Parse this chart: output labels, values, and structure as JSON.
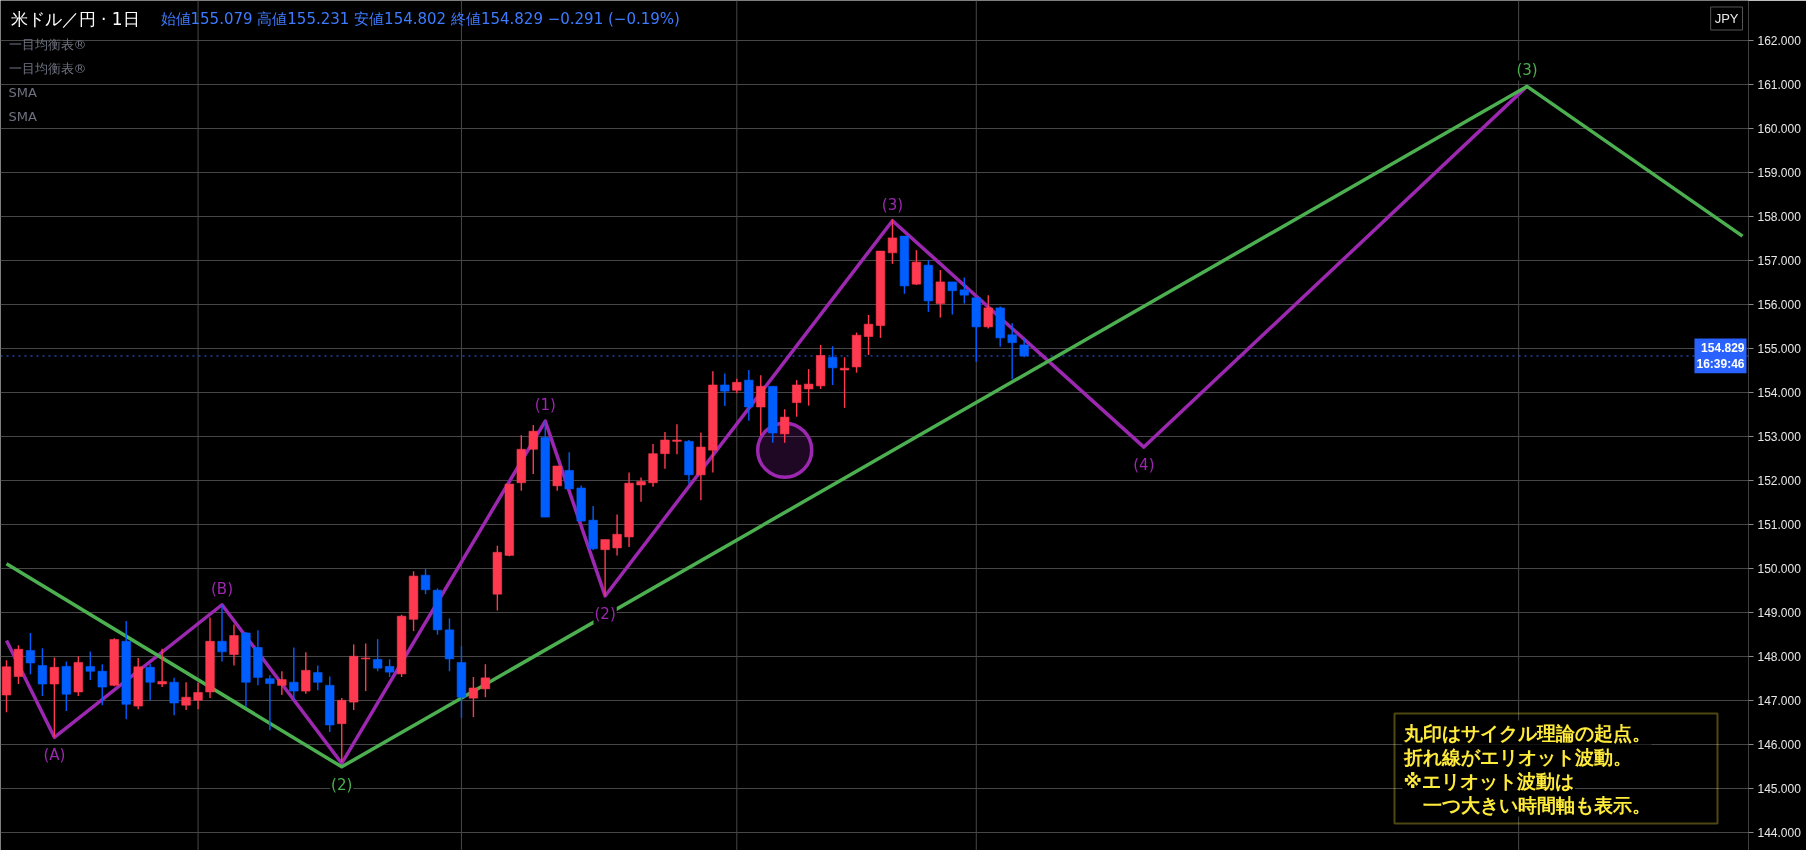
{
  "chart_data": {
    "type": "candlestick",
    "title": "米ドル／円 · 1日",
    "subtitle": "始値155.079 高値155.231 安値154.802 終値154.829 −0.291 (−0.19%)",
    "categories": [
      null,
      null,
      null,
      null,
      null,
      null,
      null,
      null,
      null,
      null,
      null,
      null,
      null,
      null,
      null,
      null,
      null,
      null,
      null,
      null,
      null,
      null,
      null,
      null,
      null,
      null,
      null,
      null,
      null,
      null,
      null,
      null,
      null,
      null,
      null,
      null,
      null,
      null,
      null,
      null,
      null,
      null,
      null,
      null,
      null,
      null,
      null,
      null,
      null,
      null,
      null,
      null,
      null,
      null,
      null,
      null,
      null,
      null,
      null,
      null,
      null,
      null,
      null,
      null,
      null,
      null,
      null,
      null,
      null,
      null,
      null,
      null,
      null,
      null,
      null,
      null,
      null,
      null,
      null,
      null,
      null,
      null,
      null,
      null,
      null,
      null,
      null,
      null,
      null,
      null,
      null,
      null,
      null,
      null,
      null,
      null,
      null,
      null,
      null,
      null,
      null,
      null,
      null,
      null,
      null,
      null,
      null,
      null,
      null,
      null,
      null,
      null,
      null,
      null,
      null,
      null,
      null,
      null,
      null,
      null,
      null,
      null,
      null,
      null,
      null,
      null,
      null,
      null,
      null,
      null,
      null,
      null,
      null,
      null,
      null,
      null,
      null,
      null,
      null,
      null,
      null,
      null,
      null,
      null,
      null,
      null
    ],
    "ohlc": [
      [
        147.13,
        147.92,
        146.74,
        147.77
      ],
      [
        147.55,
        148.26,
        147.38,
        148.17
      ],
      [
        148.14,
        148.54,
        147.6,
        147.86
      ],
      [
        147.8,
        148.19,
        147.11,
        147.38
      ],
      [
        147.38,
        147.98,
        146.17,
        147.76
      ],
      [
        147.78,
        147.89,
        146.77,
        147.15
      ],
      [
        147.2,
        148.01,
        147.11,
        147.87
      ],
      [
        147.78,
        148.12,
        147.47,
        147.67
      ],
      [
        147.67,
        147.83,
        146.9,
        147.31
      ],
      [
        147.35,
        148.42,
        147.33,
        148.39
      ],
      [
        148.35,
        148.81,
        146.58,
        146.92
      ],
      [
        146.88,
        147.97,
        146.81,
        147.77
      ],
      [
        147.76,
        147.84,
        147.01,
        147.42
      ],
      [
        147.38,
        148.18,
        147.31,
        147.44
      ],
      [
        147.42,
        147.52,
        146.67,
        146.95
      ],
      [
        146.9,
        147.42,
        146.79,
        147.08
      ],
      [
        147.01,
        147.41,
        146.81,
        147.19
      ],
      [
        147.2,
        148.89,
        147.06,
        148.35
      ],
      [
        148.35,
        149.18,
        147.89,
        148.11
      ],
      [
        148.05,
        148.73,
        147.8,
        148.48
      ],
      [
        148.54,
        148.56,
        146.86,
        147.42
      ],
      [
        148.21,
        148.6,
        147.35,
        147.53
      ],
      [
        147.5,
        147.58,
        146.33,
        147.39
      ],
      [
        147.35,
        147.67,
        147.13,
        147.48
      ],
      [
        147.42,
        148.21,
        147.02,
        147.22
      ],
      [
        147.22,
        148.1,
        147.16,
        147.69
      ],
      [
        147.64,
        147.8,
        147.24,
        147.42
      ],
      [
        147.35,
        147.55,
        146.29,
        146.45
      ],
      [
        146.48,
        147.06,
        145.61,
        147.01
      ],
      [
        146.97,
        148.28,
        146.79,
        148.01
      ],
      [
        147.95,
        148.3,
        147.22,
        147.97
      ],
      [
        147.94,
        148.4,
        147.67,
        147.74
      ],
      [
        147.78,
        147.94,
        147.54,
        147.65
      ],
      [
        147.61,
        148.95,
        147.54,
        148.92
      ],
      [
        148.85,
        149.94,
        148.58,
        149.83
      ],
      [
        149.85,
        149.99,
        149.42,
        149.52
      ],
      [
        149.51,
        149.55,
        148.5,
        148.61
      ],
      [
        148.61,
        148.87,
        147.67,
        147.95
      ],
      [
        147.87,
        148.24,
        146.61,
        147.08
      ],
      [
        147.06,
        147.54,
        146.63,
        147.29
      ],
      [
        147.27,
        147.83,
        147.08,
        147.52
      ],
      [
        149.42,
        150.52,
        149.05,
        150.37
      ],
      [
        150.3,
        151.92,
        150.28,
        151.92
      ],
      [
        151.95,
        153.03,
        151.77,
        152.71
      ],
      [
        152.71,
        153.26,
        152.15,
        153.12
      ],
      [
        152.98,
        153.35,
        151.17,
        151.17
      ],
      [
        151.88,
        152.33,
        151.77,
        152.33
      ],
      [
        152.23,
        152.64,
        151.81,
        151.81
      ],
      [
        151.83,
        151.89,
        151.08,
        151.08
      ],
      [
        151.1,
        151.42,
        150.42,
        150.45
      ],
      [
        150.43,
        150.66,
        149.38,
        150.66
      ],
      [
        150.47,
        151.23,
        150.3,
        150.78
      ],
      [
        150.72,
        152.18,
        150.49,
        151.94
      ],
      [
        151.9,
        152.07,
        151.52,
        151.98
      ],
      [
        151.95,
        152.83,
        151.86,
        152.61
      ],
      [
        152.61,
        153.1,
        152.27,
        152.92
      ],
      [
        152.89,
        153.28,
        152.6,
        152.92
      ],
      [
        152.89,
        152.92,
        151.93,
        152.13
      ],
      [
        152.13,
        153.09,
        151.55,
        152.76
      ],
      [
        152.69,
        154.48,
        152.18,
        154.17
      ],
      [
        154.17,
        154.43,
        153.69,
        154.03
      ],
      [
        154.05,
        154.31,
        153.98,
        154.23
      ],
      [
        154.28,
        154.51,
        153.36,
        153.67
      ],
      [
        153.67,
        154.39,
        153.03,
        154.14
      ],
      [
        154.14,
        154.14,
        152.86,
        153.08
      ],
      [
        153.06,
        153.62,
        152.86,
        153.44
      ],
      [
        153.77,
        154.28,
        153.45,
        154.17
      ],
      [
        154.08,
        154.53,
        153.7,
        154.19
      ],
      [
        154.15,
        155.08,
        154.08,
        154.84
      ],
      [
        154.8,
        155.05,
        154.17,
        154.56
      ],
      [
        154.51,
        154.8,
        153.65,
        154.55
      ],
      [
        154.58,
        155.36,
        154.45,
        155.3
      ],
      [
        155.27,
        155.76,
        154.85,
        155.55
      ],
      [
        155.52,
        157.21,
        155.24,
        157.21
      ],
      [
        157.17,
        157.93,
        156.92,
        157.51
      ],
      [
        157.55,
        157.55,
        156.24,
        156.42
      ],
      [
        156.46,
        157.23,
        156.44,
        156.96
      ],
      [
        156.89,
        157.01,
        155.83,
        156.08
      ],
      [
        156.02,
        156.78,
        155.7,
        156.51
      ],
      [
        156.51,
        156.51,
        155.77,
        156.31
      ],
      [
        156.33,
        156.61,
        156.02,
        156.21
      ],
      [
        156.15,
        156.15,
        154.7,
        155.49
      ],
      [
        155.49,
        156.21,
        155.45,
        155.92
      ],
      [
        155.92,
        155.95,
        155.04,
        155.24
      ],
      [
        155.31,
        155.57,
        154.3,
        155.13
      ],
      [
        155.079,
        155.231,
        154.802,
        154.829
      ],
      null,
      null,
      null,
      null,
      null,
      null,
      null,
      null,
      null,
      null,
      null,
      null,
      null,
      null,
      null,
      null,
      null,
      null,
      null,
      null,
      null,
      null,
      null,
      null,
      null,
      null,
      null,
      null,
      null,
      null,
      null,
      null,
      null,
      null,
      null,
      null,
      null,
      null,
      null,
      null,
      null,
      null,
      null,
      null,
      null,
      null,
      null,
      null,
      null,
      null,
      null,
      null,
      null,
      null,
      null,
      null,
      null,
      null,
      null,
      null
    ],
    "colors": [
      "#ff3a50",
      "#ff3a50",
      "#005eff",
      "#005eff",
      "#ff3a50",
      "#005eff",
      "#ff3a50",
      "#005eff",
      "#005eff",
      "#ff3a50",
      "#005eff",
      "#ff3a50",
      "#005eff",
      "#ff3a50",
      "#005eff",
      "#ff3a50",
      "#ff3a50",
      "#ff3a50",
      "#005eff",
      "#ff3a50",
      "#005eff",
      "#005eff",
      "#005eff",
      "#ff3a50",
      "#005eff",
      "#ff3a50",
      "#005eff",
      "#005eff",
      "#ff3a50",
      "#ff3a50",
      "#ff3a50",
      "#005eff",
      "#005eff",
      "#ff3a50",
      "#ff3a50",
      "#005eff",
      "#005eff",
      "#005eff",
      "#005eff",
      "#ff3a50",
      "#ff3a50",
      "#ff3a50",
      "#ff3a50",
      "#ff3a50",
      "#ff3a50",
      "#005eff",
      "#ff3a50",
      "#005eff",
      "#005eff",
      "#005eff",
      "#ff3a50",
      "#ff3a50",
      "#ff3a50",
      "#ff3a50",
      "#ff3a50",
      "#ff3a50",
      "#ff3a50",
      "#005eff",
      "#ff3a50",
      "#ff3a50",
      "#005eff",
      "#ff3a50",
      "#005eff",
      "#ff3a50",
      "#005eff",
      "#ff3a50",
      "#ff3a50",
      "#ff3a50",
      "#ff3a50",
      "#005eff",
      "#ff3a50",
      "#ff3a50",
      "#ff3a50",
      "#ff3a50",
      "#ff3a50",
      "#005eff",
      "#ff3a50",
      "#005eff",
      "#ff3a50",
      "#005eff",
      "#005eff",
      "#005eff",
      "#ff3a50",
      "#005eff",
      "#005eff",
      "#005eff",
      null,
      null,
      null,
      null,
      null,
      null,
      null,
      null,
      null,
      null,
      null,
      null,
      null,
      null,
      null,
      null,
      null,
      null,
      null,
      null,
      null,
      null,
      null,
      null,
      null,
      null,
      null,
      null,
      null,
      null,
      null,
      null,
      null,
      null,
      null,
      null,
      null,
      null,
      null,
      null,
      null,
      null,
      null,
      null,
      null,
      null,
      null,
      null,
      null,
      null,
      null,
      null,
      null,
      null,
      null,
      null,
      null,
      null,
      null,
      null
    ],
    "series": [
      {
        "type": "line",
        "color": "#9c27b0",
        "values": [
          148.37,
          null,
          null,
          null,
          146.17,
          null,
          null,
          null,
          null,
          null,
          null,
          null,
          null,
          null,
          null,
          null,
          null,
          null,
          149.18,
          null,
          null,
          null,
          null,
          null,
          null,
          null,
          null,
          null,
          145.58,
          null,
          null,
          null,
          null,
          null,
          null,
          null,
          null,
          null,
          null,
          null,
          null,
          null,
          null,
          null,
          null,
          153.35,
          null,
          null,
          null,
          null,
          149.38,
          null,
          null,
          null,
          null,
          null,
          null,
          null,
          null,
          null,
          null,
          null,
          null,
          null,
          null,
          null,
          null,
          null,
          null,
          null,
          null,
          null,
          null,
          null,
          157.9,
          null,
          null,
          null,
          null,
          null,
          null,
          null,
          null,
          null,
          null,
          null,
          null,
          null,
          null,
          null,
          null,
          null,
          null,
          null,
          null,
          152.76,
          null,
          null,
          null,
          null,
          null,
          null,
          null,
          null,
          null,
          null,
          null,
          null,
          null,
          null,
          null,
          null,
          null,
          null,
          null,
          null,
          null,
          null,
          null,
          null,
          null,
          null,
          null,
          null,
          null,
          null,
          null,
          160.95,
          null,
          null,
          null,
          null,
          null,
          null,
          null,
          null,
          null,
          null,
          null,
          null,
          null,
          null,
          null,
          null,
          null,
          null
        ]
      },
      {
        "type": "line",
        "color": "#4caf50",
        "values": [
          150.11,
          null,
          null,
          null,
          null,
          null,
          null,
          null,
          null,
          null,
          null,
          null,
          null,
          null,
          null,
          null,
          null,
          null,
          null,
          null,
          null,
          null,
          null,
          null,
          null,
          null,
          null,
          null,
          145.5,
          null,
          null,
          null,
          null,
          null,
          null,
          null,
          null,
          null,
          null,
          null,
          null,
          null,
          null,
          null,
          null,
          null,
          null,
          null,
          null,
          null,
          null,
          null,
          null,
          null,
          null,
          null,
          null,
          null,
          null,
          null,
          null,
          null,
          null,
          null,
          null,
          null,
          null,
          null,
          null,
          null,
          null,
          null,
          null,
          null,
          null,
          null,
          null,
          null,
          null,
          null,
          null,
          null,
          null,
          null,
          null,
          null,
          null,
          null,
          null,
          null,
          null,
          null,
          null,
          null,
          null,
          null,
          null,
          null,
          null,
          null,
          null,
          null,
          null,
          null,
          null,
          null,
          null,
          null,
          null,
          null,
          null,
          null,
          null,
          null,
          null,
          null,
          null,
          null,
          null,
          null,
          null,
          null,
          null,
          null,
          null,
          null,
          null,
          160.95,
          null,
          null,
          null,
          null,
          null,
          null,
          null,
          null,
          null,
          null,
          null,
          null,
          null,
          null,
          null,
          null,
          null,
          157.55
        ]
      },
      {
        "type": "scatter",
        "color": "#9c27b0",
        "values": [
          null,
          null,
          null,
          null,
          null,
          null,
          null,
          null,
          null,
          null,
          null,
          null,
          null,
          null,
          null,
          null,
          null,
          null,
          null,
          null,
          null,
          null,
          null,
          null,
          null,
          null,
          null,
          null,
          null,
          null,
          null,
          null,
          null,
          null,
          null,
          null,
          null,
          null,
          null,
          null,
          null,
          null,
          null,
          null,
          null,
          null,
          null,
          null,
          null,
          null,
          null,
          null,
          null,
          null,
          null,
          null,
          null,
          null,
          null,
          null,
          null,
          null,
          null,
          null,
          null,
          152.69,
          null,
          null,
          null,
          null,
          null,
          null,
          null,
          null,
          null,
          null,
          null,
          null,
          null,
          null,
          null,
          null,
          null,
          null,
          null,
          null,
          null,
          null,
          null,
          null,
          null,
          null,
          null,
          null,
          null,
          null,
          null,
          null,
          null,
          null,
          null,
          null,
          null,
          null,
          null,
          null,
          null,
          null,
          null,
          null,
          null,
          null,
          null,
          null,
          null,
          null,
          null,
          null,
          null,
          null,
          null,
          null,
          null,
          null,
          null,
          null,
          null,
          null,
          null,
          null,
          null,
          null,
          null,
          null,
          null,
          null,
          null,
          null,
          null,
          null,
          null,
          null,
          null,
          null,
          null,
          null
        ]
      }
    ],
    "ylim": [
      143.6,
      162.9
    ],
    "yticks": [
      {
        "value": 144,
        "label": "144.000"
      },
      {
        "value": 145,
        "label": "145.000"
      },
      {
        "value": 146,
        "label": "146.000"
      },
      {
        "value": 147,
        "label": "147.000"
      },
      {
        "value": 148,
        "label": "148.000"
      },
      {
        "value": 149,
        "label": "149.000"
      },
      {
        "value": 150,
        "label": "150.000"
      },
      {
        "value": 151,
        "label": "151.000"
      },
      {
        "value": 152,
        "label": "152.000"
      },
      {
        "value": 153,
        "label": "153.000"
      },
      {
        "value": 154,
        "label": "154.000"
      },
      {
        "value": 155,
        "label": "155.000"
      },
      {
        "value": 156,
        "label": "156.000"
      },
      {
        "value": 157,
        "label": "157.000"
      },
      {
        "value": 158,
        "label": "158.000"
      },
      {
        "value": 159,
        "label": "159.000"
      },
      {
        "value": 160,
        "label": "160.000"
      },
      {
        "value": 161,
        "label": "161.000"
      },
      {
        "value": 162,
        "label": "162.000"
      }
    ],
    "grid": true,
    "tick_labels": "y",
    "ref_lines": [
      {
        "axis": "y",
        "value": 154.829,
        "label": "154.829\n16:39:46",
        "color": "#2962ff",
        "line_style": "dotted"
      }
    ],
    "annotations": [
      "一目均衡表®",
      "一目均衡表®",
      "SMA",
      "SMA",
      "JPY",
      "丸印はサイクル理論の起点。",
      "折れ線がエリオット波動。",
      "※エリオット波動は",
      "　一つ大きい時間軸も表示。",
      {
        "text": "(A)",
        "y": 146.17
      },
      {
        "text": "(B)",
        "y": 149.18
      },
      {
        "text": "(2)",
        "y": 145.5
      },
      {
        "text": "(1)",
        "y": 153.35
      },
      {
        "text": "(2)",
        "y": 149.38
      },
      {
        "text": "(3)",
        "y": 157.9
      },
      {
        "text": "(4)",
        "y": 152.76
      },
      {
        "text": "(3)",
        "y": 160.95
      }
    ]
  }
}
